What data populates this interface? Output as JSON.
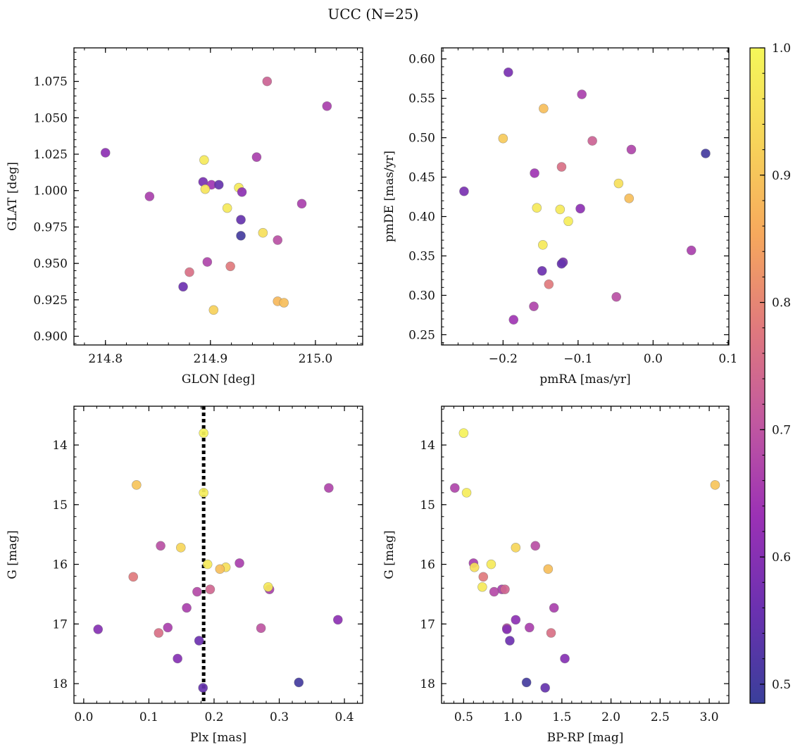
{
  "figure": {
    "title": "UCC (N=25)"
  },
  "colorbar": {
    "range": [
      0.485,
      1.0
    ],
    "ticks": [
      "0.5",
      "0.6",
      "0.7",
      "0.8",
      "0.9",
      "1.0"
    ],
    "tick_values": [
      0.5,
      0.6,
      0.7,
      0.8,
      0.9,
      1.0
    ],
    "colormap": "plasma",
    "colormap_stops": [
      "#3a3f9a",
      "#6b31b0",
      "#9b31b5",
      "#c158a0",
      "#e0797d",
      "#f6a85d",
      "#f6d45a",
      "#f5f75a"
    ]
  },
  "chart_data": [
    {
      "type": "scatter",
      "xlabel": "GLON [deg]",
      "ylabel": "GLAT [deg]",
      "xlim": [
        214.77,
        215.045
      ],
      "ylim": [
        0.894,
        1.098
      ],
      "xticks": [
        214.8,
        214.9,
        215.0
      ],
      "xtick_labels": [
        "214.8",
        "214.9",
        "215.0"
      ],
      "yticks": [
        0.9,
        0.925,
        0.95,
        0.975,
        1.0,
        1.025,
        1.05,
        1.075
      ],
      "ytick_labels": [
        "0.900",
        "0.925",
        "0.950",
        "0.975",
        "1.000",
        "1.025",
        "1.050",
        "1.075"
      ],
      "invert_y": false,
      "points": [
        {
          "x": 214.8,
          "y": 1.026,
          "c": 0.61
        },
        {
          "x": 214.842,
          "y": 0.996,
          "c": 0.66
        },
        {
          "x": 214.954,
          "y": 1.075,
          "c": 0.73
        },
        {
          "x": 215.011,
          "y": 1.058,
          "c": 0.66
        },
        {
          "x": 214.944,
          "y": 1.023,
          "c": 0.66
        },
        {
          "x": 214.894,
          "y": 1.021,
          "c": 0.97
        },
        {
          "x": 214.893,
          "y": 1.006,
          "c": 0.58
        },
        {
          "x": 214.901,
          "y": 1.004,
          "c": 0.64
        },
        {
          "x": 214.908,
          "y": 1.004,
          "c": 0.55
        },
        {
          "x": 214.895,
          "y": 1.001,
          "c": 0.96
        },
        {
          "x": 214.927,
          "y": 1.002,
          "c": 0.97
        },
        {
          "x": 214.93,
          "y": 0.999,
          "c": 0.61
        },
        {
          "x": 214.916,
          "y": 0.988,
          "c": 0.97
        },
        {
          "x": 214.987,
          "y": 0.991,
          "c": 0.66
        },
        {
          "x": 214.929,
          "y": 0.98,
          "c": 0.55
        },
        {
          "x": 214.95,
          "y": 0.971,
          "c": 0.95
        },
        {
          "x": 214.929,
          "y": 0.969,
          "c": 0.5
        },
        {
          "x": 214.964,
          "y": 0.966,
          "c": 0.69
        },
        {
          "x": 214.897,
          "y": 0.951,
          "c": 0.67
        },
        {
          "x": 214.919,
          "y": 0.948,
          "c": 0.78
        },
        {
          "x": 214.88,
          "y": 0.944,
          "c": 0.76
        },
        {
          "x": 214.874,
          "y": 0.934,
          "c": 0.56
        },
        {
          "x": 214.964,
          "y": 0.924,
          "c": 0.88
        },
        {
          "x": 214.97,
          "y": 0.923,
          "c": 0.89
        },
        {
          "x": 214.903,
          "y": 0.918,
          "c": 0.92
        }
      ]
    },
    {
      "type": "scatter",
      "xlabel": "pmRA [mas/yr]",
      "ylabel": "pmDE [mas/yr]",
      "xlim": [
        -0.282,
        0.101
      ],
      "ylim": [
        0.237,
        0.614
      ],
      "xticks": [
        -0.2,
        -0.1,
        0.0,
        0.1
      ],
      "xtick_labels": [
        "−0.2",
        "−0.1",
        "0.0",
        "0.1"
      ],
      "yticks": [
        0.25,
        0.3,
        0.35,
        0.4,
        0.45,
        0.5,
        0.55,
        0.6
      ],
      "ytick_labels": [
        "0.25",
        "0.30",
        "0.35",
        "0.40",
        "0.45",
        "0.50",
        "0.55",
        "0.60"
      ],
      "invert_y": false,
      "points": [
        {
          "x": -0.193,
          "y": 0.583,
          "c": 0.58
        },
        {
          "x": -0.095,
          "y": 0.555,
          "c": 0.66
        },
        {
          "x": -0.146,
          "y": 0.537,
          "c": 0.89
        },
        {
          "x": -0.2,
          "y": 0.499,
          "c": 0.91
        },
        {
          "x": -0.081,
          "y": 0.496,
          "c": 0.73
        },
        {
          "x": -0.029,
          "y": 0.485,
          "c": 0.67
        },
        {
          "x": 0.07,
          "y": 0.48,
          "c": 0.5
        },
        {
          "x": -0.122,
          "y": 0.463,
          "c": 0.76
        },
        {
          "x": -0.158,
          "y": 0.455,
          "c": 0.64
        },
        {
          "x": -0.046,
          "y": 0.442,
          "c": 0.95
        },
        {
          "x": -0.252,
          "y": 0.432,
          "c": 0.58
        },
        {
          "x": -0.032,
          "y": 0.423,
          "c": 0.89
        },
        {
          "x": -0.155,
          "y": 0.411,
          "c": 0.97
        },
        {
          "x": -0.124,
          "y": 0.409,
          "c": 0.97
        },
        {
          "x": -0.097,
          "y": 0.41,
          "c": 0.61
        },
        {
          "x": -0.113,
          "y": 0.394,
          "c": 0.98
        },
        {
          "x": -0.147,
          "y": 0.364,
          "c": 0.97
        },
        {
          "x": 0.051,
          "y": 0.357,
          "c": 0.66
        },
        {
          "x": -0.12,
          "y": 0.342,
          "c": 0.58
        },
        {
          "x": -0.122,
          "y": 0.34,
          "c": 0.55
        },
        {
          "x": -0.148,
          "y": 0.331,
          "c": 0.56
        },
        {
          "x": -0.139,
          "y": 0.314,
          "c": 0.78
        },
        {
          "x": -0.049,
          "y": 0.298,
          "c": 0.69
        },
        {
          "x": -0.159,
          "y": 0.286,
          "c": 0.67
        },
        {
          "x": -0.186,
          "y": 0.269,
          "c": 0.64
        }
      ]
    },
    {
      "type": "scatter",
      "xlabel": "Plx [mas]",
      "ylabel": "G [mag]",
      "xlim": [
        -0.015,
        0.428
      ],
      "ylim": [
        13.35,
        18.33
      ],
      "xticks": [
        0.0,
        0.1,
        0.2,
        0.3,
        0.4
      ],
      "xtick_labels": [
        "0.0",
        "0.1",
        "0.2",
        "0.3",
        "0.4"
      ],
      "yticks": [
        14,
        15,
        16,
        17,
        18
      ],
      "ytick_labels": [
        "14",
        "15",
        "16",
        "17",
        "18"
      ],
      "invert_y": true,
      "vline": {
        "x": 0.184,
        "style": "dotted"
      },
      "points": [
        {
          "x": 0.184,
          "y": 13.8,
          "c": 0.99
        },
        {
          "x": 0.081,
          "y": 14.67,
          "c": 0.9
        },
        {
          "x": 0.376,
          "y": 14.72,
          "c": 0.67
        },
        {
          "x": 0.184,
          "y": 14.8,
          "c": 0.98
        },
        {
          "x": 0.118,
          "y": 15.69,
          "c": 0.69
        },
        {
          "x": 0.149,
          "y": 15.72,
          "c": 0.93
        },
        {
          "x": 0.076,
          "y": 16.21,
          "c": 0.78
        },
        {
          "x": 0.19,
          "y": 16.0,
          "c": 0.97
        },
        {
          "x": 0.218,
          "y": 16.05,
          "c": 0.95
        },
        {
          "x": 0.209,
          "y": 16.08,
          "c": 0.89
        },
        {
          "x": 0.239,
          "y": 15.98,
          "c": 0.66
        },
        {
          "x": 0.194,
          "y": 16.42,
          "c": 0.74
        },
        {
          "x": 0.285,
          "y": 16.42,
          "c": 0.66
        },
        {
          "x": 0.283,
          "y": 16.38,
          "c": 0.97
        },
        {
          "x": 0.174,
          "y": 16.46,
          "c": 0.68
        },
        {
          "x": 0.158,
          "y": 16.73,
          "c": 0.66
        },
        {
          "x": 0.39,
          "y": 16.93,
          "c": 0.61
        },
        {
          "x": 0.022,
          "y": 17.09,
          "c": 0.6
        },
        {
          "x": 0.129,
          "y": 17.06,
          "c": 0.66
        },
        {
          "x": 0.272,
          "y": 17.07,
          "c": 0.7
        },
        {
          "x": 0.115,
          "y": 17.15,
          "c": 0.76
        },
        {
          "x": 0.177,
          "y": 17.28,
          "c": 0.56
        },
        {
          "x": 0.144,
          "y": 17.58,
          "c": 0.6
        },
        {
          "x": 0.33,
          "y": 17.98,
          "c": 0.5
        },
        {
          "x": 0.183,
          "y": 18.07,
          "c": 0.55
        }
      ]
    },
    {
      "type": "scatter",
      "xlabel": "BP-RP [mag]",
      "ylabel": "G [mag]",
      "xlim": [
        0.275,
        3.2
      ],
      "ylim": [
        13.35,
        18.33
      ],
      "xticks": [
        0.5,
        1.0,
        1.5,
        2.0,
        2.5,
        3.0
      ],
      "xtick_labels": [
        "0.5",
        "1.0",
        "1.5",
        "2.0",
        "2.5",
        "3.0"
      ],
      "yticks": [
        14,
        15,
        16,
        17,
        18
      ],
      "ytick_labels": [
        "14",
        "15",
        "16",
        "17",
        "18"
      ],
      "invert_y": true,
      "points": [
        {
          "x": 0.5,
          "y": 13.8,
          "c": 0.99
        },
        {
          "x": 3.06,
          "y": 14.67,
          "c": 0.9
        },
        {
          "x": 0.41,
          "y": 14.72,
          "c": 0.67
        },
        {
          "x": 0.53,
          "y": 14.8,
          "c": 0.98
        },
        {
          "x": 1.23,
          "y": 15.69,
          "c": 0.69
        },
        {
          "x": 1.03,
          "y": 15.72,
          "c": 0.93
        },
        {
          "x": 0.6,
          "y": 15.98,
          "c": 0.66
        },
        {
          "x": 0.78,
          "y": 16.0,
          "c": 0.97
        },
        {
          "x": 0.61,
          "y": 16.05,
          "c": 0.95
        },
        {
          "x": 1.36,
          "y": 16.08,
          "c": 0.89
        },
        {
          "x": 0.7,
          "y": 16.21,
          "c": 0.78
        },
        {
          "x": 0.69,
          "y": 16.38,
          "c": 0.97
        },
        {
          "x": 0.89,
          "y": 16.42,
          "c": 0.66
        },
        {
          "x": 0.92,
          "y": 16.42,
          "c": 0.74
        },
        {
          "x": 0.81,
          "y": 16.46,
          "c": 0.68
        },
        {
          "x": 1.42,
          "y": 16.73,
          "c": 0.66
        },
        {
          "x": 1.03,
          "y": 16.93,
          "c": 0.61
        },
        {
          "x": 1.17,
          "y": 17.06,
          "c": 0.66
        },
        {
          "x": 0.94,
          "y": 17.07,
          "c": 0.7
        },
        {
          "x": 0.94,
          "y": 17.09,
          "c": 0.6
        },
        {
          "x": 1.39,
          "y": 17.15,
          "c": 0.76
        },
        {
          "x": 0.97,
          "y": 17.28,
          "c": 0.56
        },
        {
          "x": 1.53,
          "y": 17.58,
          "c": 0.6
        },
        {
          "x": 1.14,
          "y": 17.98,
          "c": 0.5
        },
        {
          "x": 1.33,
          "y": 18.07,
          "c": 0.55
        }
      ]
    }
  ]
}
